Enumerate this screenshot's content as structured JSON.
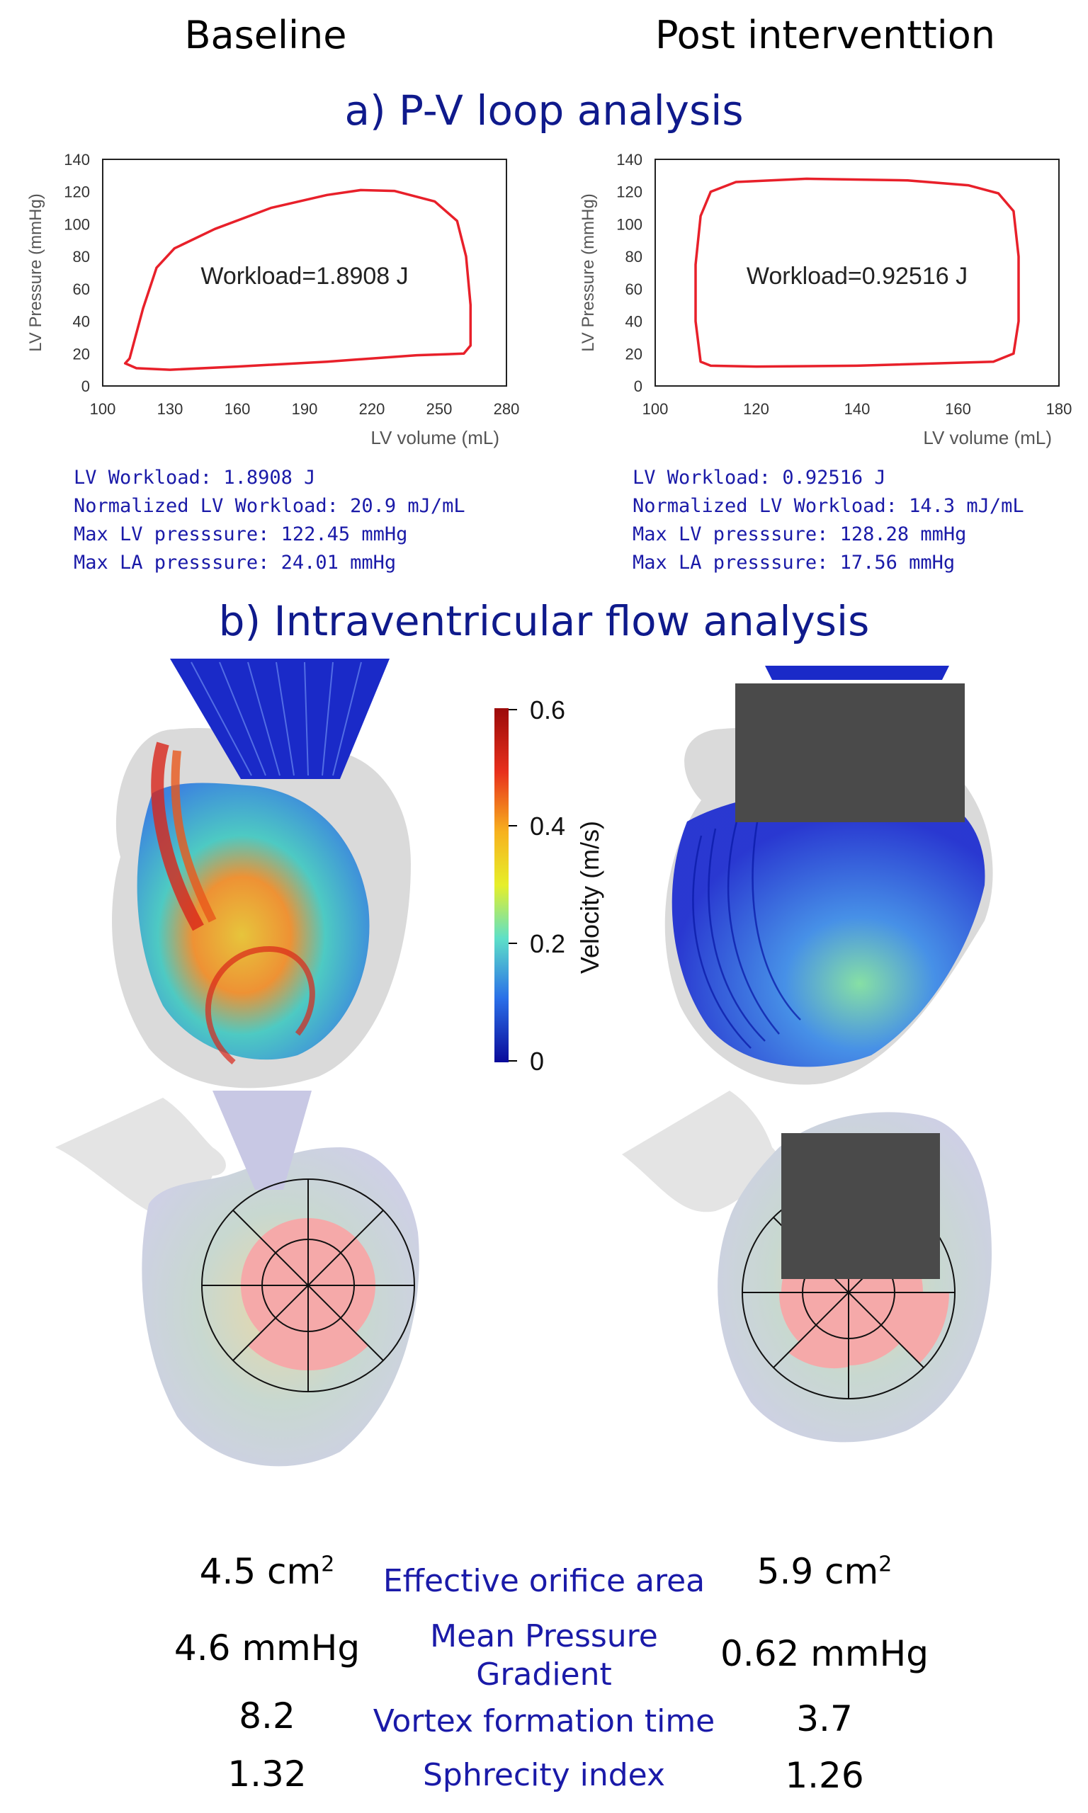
{
  "headers": {
    "left": "Baseline",
    "right": "Post interventtion"
  },
  "section_a_title": "a) P-V loop analysis",
  "section_b_title": "b) Intraventricular flow analysis",
  "chart_data": [
    {
      "type": "line",
      "xlabel": "LV volume (mL)",
      "ylabel": "LV Pressure (mmHg)",
      "xlim": [
        100,
        280
      ],
      "ylim": [
        0,
        140
      ],
      "x_ticks": [
        "100",
        "130",
        "160",
        "190",
        "220",
        "250",
        "280"
      ],
      "y_ticks": [
        "0",
        "20",
        "40",
        "60",
        "80",
        "100",
        "120",
        "140"
      ],
      "annotation": "Workload=1.8908 J",
      "series_color": "#e8202a",
      "loop": [
        [
          112,
          17
        ],
        [
          118,
          48
        ],
        [
          124,
          73
        ],
        [
          132,
          85
        ],
        [
          150,
          97
        ],
        [
          175,
          110
        ],
        [
          200,
          118
        ],
        [
          215,
          121
        ],
        [
          230,
          120.5
        ],
        [
          248,
          114
        ],
        [
          258,
          102
        ],
        [
          262,
          80
        ],
        [
          264,
          50
        ],
        [
          264,
          25
        ],
        [
          261,
          20
        ],
        [
          240,
          19
        ],
        [
          200,
          15
        ],
        [
          160,
          12
        ],
        [
          130,
          10
        ],
        [
          115,
          11
        ],
        [
          110,
          14
        ]
      ]
    },
    {
      "type": "line",
      "xlabel": "LV volume (mL)",
      "ylabel": "LV Pressure (mmHg)",
      "xlim": [
        100,
        180
      ],
      "ylim": [
        0,
        140
      ],
      "x_ticks": [
        "100",
        "120",
        "140",
        "160",
        "180"
      ],
      "y_ticks": [
        "0",
        "20",
        "40",
        "60",
        "80",
        "100",
        "120",
        "140"
      ],
      "annotation": "Workload=0.92516 J",
      "series_color": "#e8202a",
      "loop": [
        [
          109,
          15
        ],
        [
          108,
          40
        ],
        [
          108,
          75
        ],
        [
          109,
          105
        ],
        [
          111,
          120
        ],
        [
          116,
          126
        ],
        [
          130,
          128
        ],
        [
          150,
          127
        ],
        [
          162,
          124
        ],
        [
          168,
          119
        ],
        [
          171,
          108
        ],
        [
          172,
          80
        ],
        [
          172,
          40
        ],
        [
          171,
          20
        ],
        [
          167,
          15
        ],
        [
          140,
          12.5
        ],
        [
          120,
          12
        ],
        [
          111,
          12.5
        ]
      ]
    }
  ],
  "stats_left": [
    "LV Workload: 1.8908 J",
    "Normalized LV Workload: 20.9 mJ/mL",
    "Max LV presssure: 122.45 mmHg",
    "Max LA presssure: 24.01 mmHg"
  ],
  "stats_right": [
    "LV Workload: 0.92516 J",
    "Normalized LV Workload: 14.3 mJ/mL",
    "Max LV presssure: 128.28 mmHg",
    "Max LA presssure: 17.56 mmHg"
  ],
  "colorbar": {
    "label": "Velocity (m/s)",
    "ticks": [
      "0.6",
      "0.4",
      "0.2",
      "0"
    ]
  },
  "metrics": {
    "eoa": {
      "label": "Effective orifice area",
      "left": "4.5 cm",
      "right": "5.9 cm",
      "sup": "2"
    },
    "mpg": {
      "label1": "Mean Pressure",
      "label2": "Gradient",
      "left": "4.6 mmHg",
      "right": "0.62 mmHg"
    },
    "vft": {
      "label": "Vortex formation time",
      "left": "8.2",
      "right": "3.7"
    },
    "si": {
      "label": "Sphrecity index",
      "left": "1.32",
      "right": "1.26"
    }
  },
  "colors": {
    "title_blue": "#0f1a8c",
    "stat_blue": "#1a1aa8",
    "loop_red": "#e8202a",
    "redaction": "#4a4a4a",
    "bullseye_fill": "#f5a9a9"
  }
}
